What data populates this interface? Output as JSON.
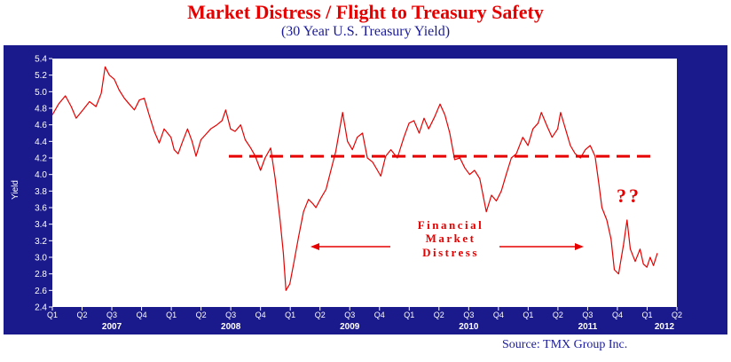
{
  "title": "Market Distress / Flight to Treasury Safety",
  "subtitle": "(30 Year U.S. Treasury Yield)",
  "source": "Source: TMX Group Inc.",
  "colors": {
    "frame": "#1a1a8c",
    "plot_bg": "#ffffff",
    "series": "#e60000",
    "accent": "#e60000"
  },
  "chart_data": {
    "type": "line",
    "ylabel": "Yield",
    "ylim": [
      2.4,
      5.4
    ],
    "y_ticks": [
      "2.4",
      "2.6",
      "2.8",
      "3.0",
      "3.2",
      "3.4",
      "3.6",
      "3.8",
      "4.0",
      "4.2",
      "4.4",
      "4.6",
      "4.8",
      "5.0",
      "5.2",
      "5.4"
    ],
    "x_quarter_ticks": [
      "Q1",
      "Q2",
      "Q3",
      "Q4",
      "Q1",
      "Q2",
      "Q3",
      "Q4",
      "Q1",
      "Q2",
      "Q3",
      "Q4",
      "Q1",
      "Q2",
      "Q3",
      "Q4",
      "Q1",
      "Q2",
      "Q3",
      "Q4",
      "Q1",
      "Q2"
    ],
    "x_years": [
      "2007",
      "2008",
      "2009",
      "2010",
      "2011",
      "2012"
    ],
    "x_range": [
      "2007-01-01",
      "2012-04-01"
    ],
    "grid": false,
    "series": [
      {
        "values": [
          [
            "2007-01-01",
            4.72
          ],
          [
            "2007-01-20",
            4.85
          ],
          [
            "2007-02-10",
            4.95
          ],
          [
            "2007-02-28",
            4.82
          ],
          [
            "2007-03-15",
            4.68
          ],
          [
            "2007-04-05",
            4.78
          ],
          [
            "2007-04-25",
            4.88
          ],
          [
            "2007-05-15",
            4.82
          ],
          [
            "2007-05-31",
            4.98
          ],
          [
            "2007-06-12",
            5.3
          ],
          [
            "2007-06-25",
            5.2
          ],
          [
            "2007-07-10",
            5.15
          ],
          [
            "2007-07-25",
            5.02
          ],
          [
            "2007-08-10",
            4.92
          ],
          [
            "2007-08-25",
            4.85
          ],
          [
            "2007-09-10",
            4.78
          ],
          [
            "2007-09-25",
            4.9
          ],
          [
            "2007-10-10",
            4.92
          ],
          [
            "2007-10-25",
            4.72
          ],
          [
            "2007-11-10",
            4.52
          ],
          [
            "2007-11-25",
            4.38
          ],
          [
            "2007-12-10",
            4.55
          ],
          [
            "2007-12-31",
            4.45
          ],
          [
            "2008-01-10",
            4.3
          ],
          [
            "2008-01-22",
            4.25
          ],
          [
            "2008-02-05",
            4.4
          ],
          [
            "2008-02-20",
            4.55
          ],
          [
            "2008-03-05",
            4.4
          ],
          [
            "2008-03-17",
            4.22
          ],
          [
            "2008-04-01",
            4.42
          ],
          [
            "2008-04-15",
            4.48
          ],
          [
            "2008-05-01",
            4.55
          ],
          [
            "2008-05-20",
            4.6
          ],
          [
            "2008-06-05",
            4.65
          ],
          [
            "2008-06-16",
            4.78
          ],
          [
            "2008-07-01",
            4.55
          ],
          [
            "2008-07-15",
            4.52
          ],
          [
            "2008-08-01",
            4.6
          ],
          [
            "2008-08-15",
            4.42
          ],
          [
            "2008-09-01",
            4.32
          ],
          [
            "2008-09-15",
            4.22
          ],
          [
            "2008-10-01",
            4.05
          ],
          [
            "2008-10-15",
            4.2
          ],
          [
            "2008-11-01",
            4.32
          ],
          [
            "2008-11-15",
            3.95
          ],
          [
            "2008-11-30",
            3.45
          ],
          [
            "2008-12-10",
            3.05
          ],
          [
            "2008-12-18",
            2.6
          ],
          [
            "2008-12-30",
            2.68
          ],
          [
            "2009-01-12",
            2.95
          ],
          [
            "2009-01-26",
            3.25
          ],
          [
            "2009-02-10",
            3.55
          ],
          [
            "2009-02-25",
            3.7
          ],
          [
            "2009-03-10",
            3.65
          ],
          [
            "2009-03-20",
            3.6
          ],
          [
            "2009-04-05",
            3.72
          ],
          [
            "2009-04-20",
            3.82
          ],
          [
            "2009-05-05",
            4.05
          ],
          [
            "2009-05-20",
            4.28
          ],
          [
            "2009-06-10",
            4.75
          ],
          [
            "2009-06-25",
            4.4
          ],
          [
            "2009-07-10",
            4.3
          ],
          [
            "2009-07-25",
            4.45
          ],
          [
            "2009-08-10",
            4.5
          ],
          [
            "2009-08-25",
            4.2
          ],
          [
            "2009-09-10",
            4.15
          ],
          [
            "2009-09-25",
            4.05
          ],
          [
            "2009-10-05",
            3.98
          ],
          [
            "2009-10-20",
            4.22
          ],
          [
            "2009-11-05",
            4.3
          ],
          [
            "2009-11-25",
            4.2
          ],
          [
            "2009-12-15",
            4.45
          ],
          [
            "2009-12-31",
            4.62
          ],
          [
            "2010-01-15",
            4.65
          ],
          [
            "2010-01-31",
            4.5
          ],
          [
            "2010-02-15",
            4.68
          ],
          [
            "2010-03-01",
            4.55
          ],
          [
            "2010-03-20",
            4.7
          ],
          [
            "2010-04-05",
            4.85
          ],
          [
            "2010-04-20",
            4.72
          ],
          [
            "2010-05-05",
            4.5
          ],
          [
            "2010-05-20",
            4.18
          ],
          [
            "2010-06-05",
            4.2
          ],
          [
            "2010-06-20",
            4.08
          ],
          [
            "2010-07-05",
            4.0
          ],
          [
            "2010-07-20",
            4.05
          ],
          [
            "2010-08-05",
            3.95
          ],
          [
            "2010-08-25",
            3.55
          ],
          [
            "2010-09-10",
            3.75
          ],
          [
            "2010-09-25",
            3.68
          ],
          [
            "2010-10-10",
            3.8
          ],
          [
            "2010-10-25",
            4.0
          ],
          [
            "2010-11-10",
            4.2
          ],
          [
            "2010-11-25",
            4.25
          ],
          [
            "2010-12-15",
            4.45
          ],
          [
            "2010-12-31",
            4.35
          ],
          [
            "2011-01-15",
            4.55
          ],
          [
            "2011-01-31",
            4.62
          ],
          [
            "2011-02-10",
            4.75
          ],
          [
            "2011-02-28",
            4.58
          ],
          [
            "2011-03-15",
            4.45
          ],
          [
            "2011-04-01",
            4.55
          ],
          [
            "2011-04-10",
            4.75
          ],
          [
            "2011-04-25",
            4.55
          ],
          [
            "2011-05-10",
            4.35
          ],
          [
            "2011-05-25",
            4.25
          ],
          [
            "2011-06-10",
            4.2
          ],
          [
            "2011-06-25",
            4.3
          ],
          [
            "2011-07-10",
            4.35
          ],
          [
            "2011-07-25",
            4.22
          ],
          [
            "2011-08-05",
            3.9
          ],
          [
            "2011-08-15",
            3.6
          ],
          [
            "2011-08-30",
            3.45
          ],
          [
            "2011-09-12",
            3.22
          ],
          [
            "2011-09-22",
            2.85
          ],
          [
            "2011-10-05",
            2.8
          ],
          [
            "2011-10-20",
            3.15
          ],
          [
            "2011-10-31",
            3.45
          ],
          [
            "2011-11-10",
            3.1
          ],
          [
            "2011-11-25",
            2.95
          ],
          [
            "2011-12-10",
            3.1
          ],
          [
            "2011-12-20",
            2.92
          ],
          [
            "2011-12-31",
            2.88
          ],
          [
            "2012-01-10",
            3.0
          ],
          [
            "2012-01-20",
            2.9
          ],
          [
            "2012-02-01",
            3.05
          ]
        ]
      }
    ],
    "reference_line": {
      "y": 4.22,
      "style": "dashed"
    },
    "annotations": {
      "distress_lines": [
        "Financial",
        "Market",
        "Distress"
      ],
      "question": "??"
    }
  }
}
